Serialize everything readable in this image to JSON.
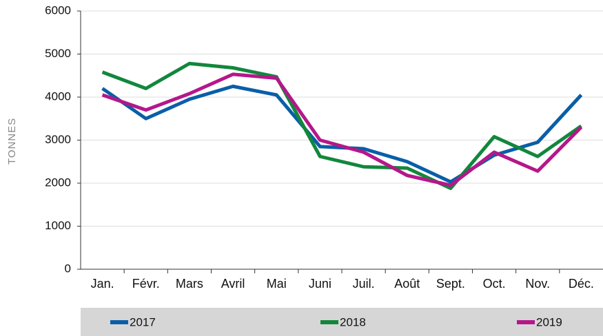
{
  "chart_data": {
    "type": "line",
    "y_label": "TONNES",
    "categories": [
      "Jan.",
      "Févr.",
      "Mars",
      "Avril",
      "Mai",
      "Juni",
      "Juil.",
      "Août",
      "Sept.",
      "Oct.",
      "Nov.",
      "Déc."
    ],
    "series": [
      {
        "name": "2017",
        "color": "#0a5ea8",
        "values": [
          4200,
          3500,
          3950,
          4250,
          4050,
          2850,
          2800,
          2500,
          2030,
          2650,
          2950,
          4050
        ]
      },
      {
        "name": "2018",
        "color": "#12873c",
        "values": [
          4580,
          4200,
          4780,
          4680,
          4470,
          2620,
          2380,
          2350,
          1880,
          3080,
          2620,
          3330
        ]
      },
      {
        "name": "2019",
        "color": "#b5178a",
        "values": [
          4050,
          3700,
          4080,
          4530,
          4440,
          3000,
          2720,
          2180,
          1950,
          2720,
          2280,
          3300
        ]
      }
    ],
    "ylim": [
      0,
      6000
    ],
    "yticks": [
      0,
      1000,
      2000,
      3000,
      4000,
      5000,
      6000
    ],
    "grid": true,
    "legend": "bottom"
  }
}
